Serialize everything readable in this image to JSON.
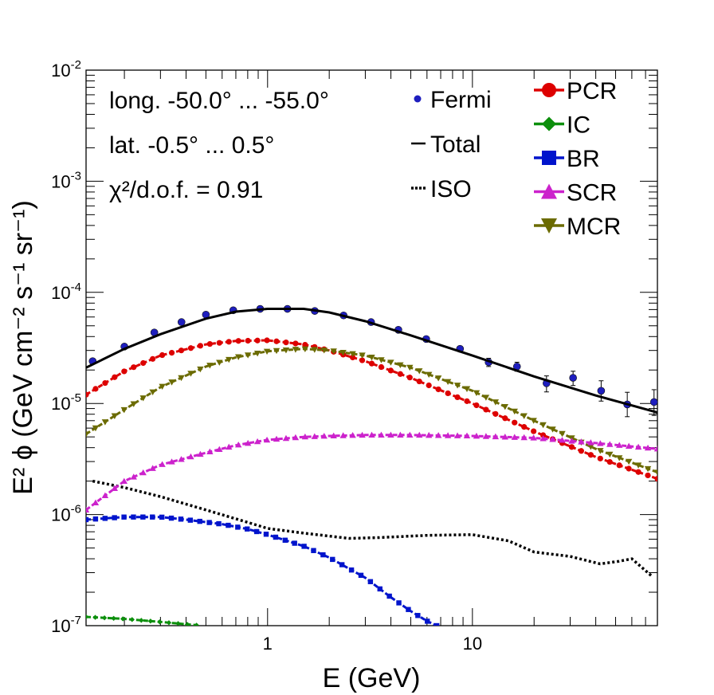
{
  "chart_data": {
    "type": "line",
    "x_scale": "log",
    "y_scale": "log",
    "xlim": [
      0.13,
      80
    ],
    "ylim": [
      1e-07,
      0.01
    ],
    "xlabel": "E (GeV)",
    "ylabel": "E² ϕ (GeV cm⁻² s⁻¹ sr⁻¹)",
    "x_tick_labels": [
      "1",
      "10"
    ],
    "y_tick_labels": [
      {
        "base": "10",
        "exp": "-7",
        "value": 1e-07
      },
      {
        "base": "10",
        "exp": "-6",
        "value": 1e-06
      },
      {
        "base": "10",
        "exp": "-5",
        "value": 1e-05
      },
      {
        "base": "10",
        "exp": "-4",
        "value": 0.0001
      },
      {
        "base": "10",
        "exp": "-3",
        "value": 0.001
      },
      {
        "base": "10",
        "exp": "-2",
        "value": 0.01
      }
    ],
    "annotations": {
      "longitude": "long. -50.0° ... -55.0°",
      "latitude": "lat. -0.5° ... 0.5°",
      "chi2": "χ²/d.o.f. = 0.91"
    },
    "legend": [
      {
        "label": "Fermi",
        "style": "marker",
        "color": "#1e1ebe"
      },
      {
        "label": "Total",
        "style": "line",
        "color": "#000000"
      },
      {
        "label": "ISO",
        "style": "dotted",
        "color": "#000000"
      },
      {
        "label": "PCR",
        "style": "circle",
        "color": "#dd0000"
      },
      {
        "label": "IC",
        "style": "diamond",
        "color": "#0c8f0c"
      },
      {
        "label": "BR",
        "style": "square",
        "color": "#0014cc"
      },
      {
        "label": "SCR",
        "style": "triangle-up",
        "color": "#cc22cc"
      },
      {
        "label": "MCR",
        "style": "triangle-down",
        "color": "#6b6b00"
      }
    ],
    "series": [
      {
        "name": "Fermi",
        "kind": "points",
        "color": "#1e1ebe",
        "x": [
          0.14,
          0.2,
          0.28,
          0.38,
          0.5,
          0.68,
          0.92,
          1.25,
          1.7,
          2.35,
          3.2,
          4.35,
          5.95,
          8.7,
          12,
          16.5,
          23,
          31,
          42.5,
          57,
          77
        ],
        "y": [
          2.4e-05,
          3.25e-05,
          4.35e-05,
          5.4e-05,
          6.3e-05,
          6.9e-05,
          7.1e-05,
          7.1e-05,
          6.8e-05,
          6.2e-05,
          5.4e-05,
          4.6e-05,
          3.8e-05,
          3.1e-05,
          2.35e-05,
          2.15e-05,
          1.52e-05,
          1.7e-05,
          1.3e-05,
          9.8e-06,
          1.03e-05
        ],
        "err_lo": [
          0,
          0,
          0,
          0,
          0,
          0,
          0,
          0,
          0,
          0,
          0,
          0,
          0,
          0,
          2e-06,
          2e-06,
          2.5e-06,
          2.5e-06,
          2.5e-06,
          2.2e-06,
          2.5e-06
        ],
        "err_hi": [
          0,
          0,
          0,
          0,
          0,
          0,
          0,
          0,
          0,
          0,
          0,
          0,
          0,
          0,
          2e-06,
          2e-06,
          2.5e-06,
          2.5e-06,
          3e-06,
          2.8e-06,
          3e-06
        ]
      },
      {
        "name": "Total",
        "kind": "solid",
        "color": "#000000",
        "x": [
          0.13,
          0.2,
          0.3,
          0.5,
          0.7,
          1.0,
          1.5,
          2.0,
          3.0,
          5.0,
          10,
          20,
          40,
          80
        ],
        "y": [
          2.1e-05,
          3.1e-05,
          4.2e-05,
          5.8e-05,
          6.7e-05,
          7.1e-05,
          7.1e-05,
          6.6e-05,
          5.5e-05,
          4.1e-05,
          2.7e-05,
          1.75e-05,
          1.18e-05,
          8.3e-06
        ]
      },
      {
        "name": "ISO",
        "kind": "dotted",
        "color": "#000000",
        "x": [
          0.14,
          0.2,
          0.3,
          0.5,
          0.8,
          1.0,
          1.5,
          2.5,
          3.5,
          6.0,
          10,
          15,
          20,
          30,
          42,
          52,
          60,
          75
        ],
        "y": [
          2e-06,
          1.75e-06,
          1.45e-06,
          1.1e-06,
          8.5e-07,
          7.5e-07,
          6.8e-07,
          6.1e-07,
          6.2e-07,
          6.5e-07,
          6.6e-07,
          5.8e-07,
          4.6e-07,
          4.2e-07,
          3.6e-07,
          3.8e-07,
          4e-07,
          2.8e-07
        ]
      },
      {
        "name": "PCR",
        "kind": "circle",
        "color": "#dd0000",
        "x": [
          0.13,
          0.2,
          0.3,
          0.5,
          0.7,
          1.0,
          1.5,
          2.0,
          3.0,
          5.0,
          10,
          20,
          40,
          80
        ],
        "y": [
          1.2e-05,
          1.95e-05,
          2.7e-05,
          3.4e-05,
          3.65e-05,
          3.7e-05,
          3.4e-05,
          3e-05,
          2.4e-05,
          1.7e-05,
          1e-05,
          5.6e-06,
          3.3e-06,
          2.1e-06
        ]
      },
      {
        "name": "MCR",
        "kind": "triangle-down",
        "color": "#6b6b00",
        "x": [
          0.13,
          0.2,
          0.3,
          0.5,
          0.7,
          1.0,
          1.5,
          2.0,
          3.0,
          5.0,
          10,
          20,
          40,
          80
        ],
        "y": [
          5.3e-06,
          8.8e-06,
          1.4e-05,
          2.15e-05,
          2.6e-05,
          2.95e-05,
          3.1e-05,
          3e-05,
          2.7e-05,
          2.1e-05,
          1.3e-05,
          7e-06,
          3.9e-06,
          2.4e-06
        ]
      },
      {
        "name": "SCR",
        "kind": "triangle-up",
        "color": "#cc22cc",
        "x": [
          0.13,
          0.2,
          0.3,
          0.5,
          0.7,
          1.0,
          1.5,
          2.0,
          3.0,
          5.0,
          10,
          20,
          40,
          80
        ],
        "y": [
          1.1e-06,
          2e-06,
          2.8e-06,
          3.6e-06,
          4.2e-06,
          4.7e-06,
          5e-06,
          5.1e-06,
          5.2e-06,
          5.2e-06,
          5.1e-06,
          4.9e-06,
          4.4e-06,
          3.9e-06
        ]
      },
      {
        "name": "BR",
        "kind": "square",
        "color": "#0014cc",
        "x": [
          0.13,
          0.2,
          0.3,
          0.4,
          0.6,
          0.8,
          1.0,
          1.5,
          2.0,
          3.0,
          4.0,
          5.0,
          6.0,
          6.7
        ],
        "y": [
          9e-07,
          9.5e-07,
          9.5e-07,
          9e-07,
          8.2e-07,
          7.4e-07,
          6.6e-07,
          5.2e-07,
          4.1e-07,
          2.7e-07,
          1.8e-07,
          1.35e-07,
          1.1e-07,
          1e-07
        ]
      },
      {
        "name": "IC",
        "kind": "diamond",
        "color": "#0c8f0c",
        "x": [
          0.13,
          0.2,
          0.3,
          0.45
        ],
        "y": [
          1.2e-07,
          1.15e-07,
          1.08e-07,
          1.01e-07
        ]
      }
    ]
  }
}
